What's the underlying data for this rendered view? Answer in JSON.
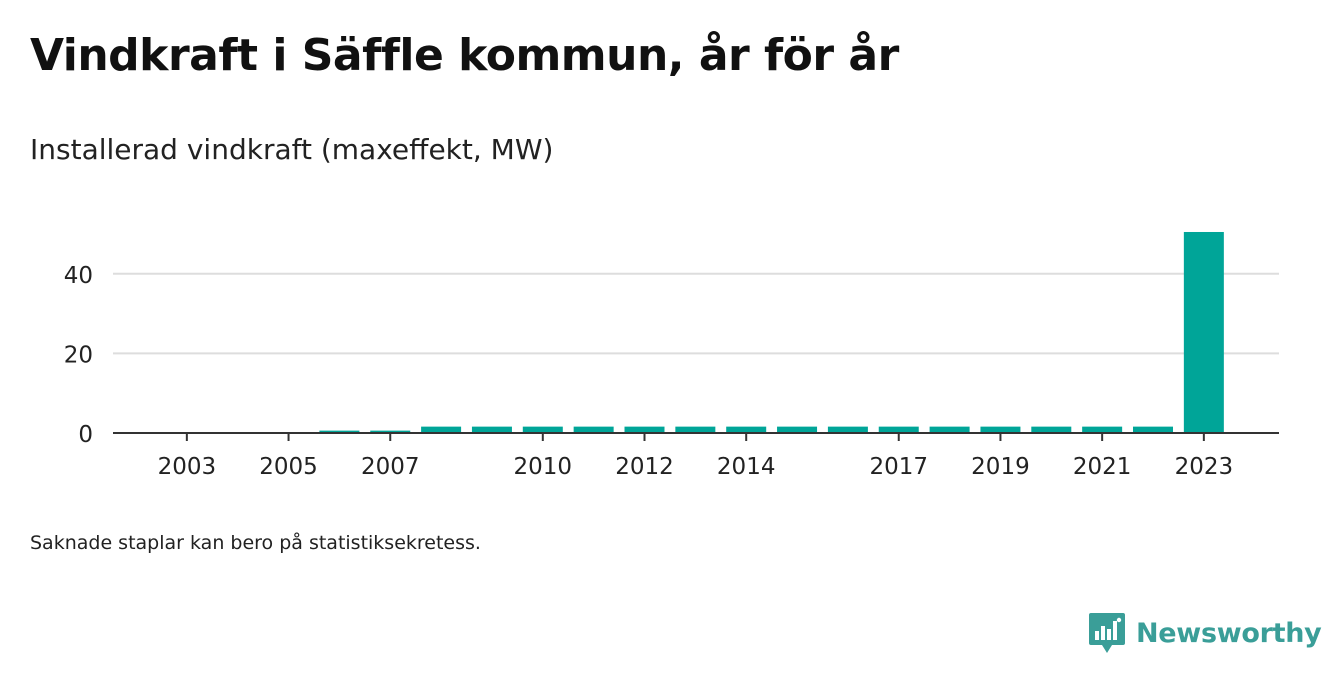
{
  "title": "Vindkraft i Säffle kommun, år för år",
  "subtitle": "Installerad vindkraft (maxeffekt, MW)",
  "footnote": "Saknade staplar kan bero på statistiksekretess.",
  "brand": {
    "name": "Newsworthy",
    "icon": "newsworthy-logo-icon",
    "color": "#3a9e98"
  },
  "colors": {
    "bar": "#00a598",
    "grid": "#dddddd",
    "axis": "#333333",
    "text": "#222222"
  },
  "chart_data": {
    "type": "bar",
    "title": "Vindkraft i Säffle kommun, år för år",
    "subtitle": "Installerad vindkraft (maxeffekt, MW)",
    "xlabel": "",
    "ylabel": "",
    "categories": [
      "2002",
      "2003",
      "2004",
      "2005",
      "2006",
      "2007",
      "2008",
      "2009",
      "2010",
      "2011",
      "2012",
      "2013",
      "2014",
      "2015",
      "2016",
      "2017",
      "2018",
      "2019",
      "2020",
      "2021",
      "2022",
      "2023"
    ],
    "values": [
      0,
      0,
      0,
      0,
      0.6,
      0.6,
      1.6,
      1.6,
      1.6,
      1.6,
      1.6,
      1.6,
      1.6,
      1.6,
      1.6,
      1.6,
      1.6,
      1.6,
      1.6,
      1.6,
      1.6,
      50.5
    ],
    "x_tick_labels": [
      "2003",
      "2005",
      "2007",
      "2010",
      "2012",
      "2014",
      "2017",
      "2019",
      "2021",
      "2023"
    ],
    "y_ticks": [
      0,
      20,
      40
    ],
    "ylim": [
      0,
      51
    ],
    "grid": true,
    "legend": "none"
  }
}
